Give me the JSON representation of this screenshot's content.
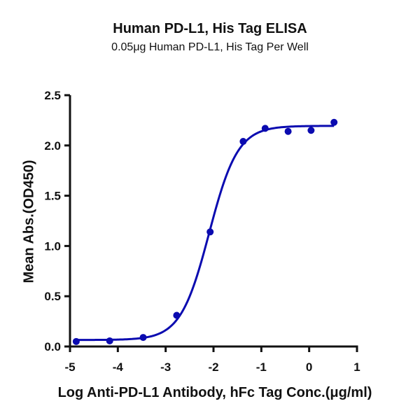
{
  "chart_data": {
    "type": "line",
    "title": "Human PD-L1, His Tag ELISA",
    "subtitle": "0.05μg Human PD-L1, His Tag Per Well",
    "xlabel": "Log Anti-PD-L1 Antibody, hFc Tag Conc.(μg/ml)",
    "ylabel": "Mean Abs.(OD450)",
    "xlim": [
      -5,
      1
    ],
    "ylim": [
      0,
      2.5
    ],
    "x_ticks": [
      "-5",
      "-4",
      "-3",
      "-2",
      "-1",
      "0",
      "1"
    ],
    "y_ticks": [
      "0.0",
      "0.5",
      "1.0",
      "1.5",
      "2.0",
      "2.5"
    ],
    "grid": false,
    "legend": null,
    "series": [
      {
        "name": "Anti-PD-L1 Antibody, hFc Tag",
        "color": "#0b0bb0",
        "style": "points + sigmoidal fit curve",
        "x": [
          -4.87,
          -4.17,
          -3.47,
          -2.77,
          -2.07,
          -1.38,
          -0.92,
          -0.44,
          0.04,
          0.52
        ],
        "y": [
          0.05,
          0.056,
          0.09,
          0.31,
          1.14,
          2.04,
          2.17,
          2.14,
          2.15,
          2.23
        ]
      }
    ],
    "fit": {
      "bottom": 0.065,
      "top": 2.195,
      "log_ec50": -2.09,
      "hill_slope": 1.45
    }
  }
}
